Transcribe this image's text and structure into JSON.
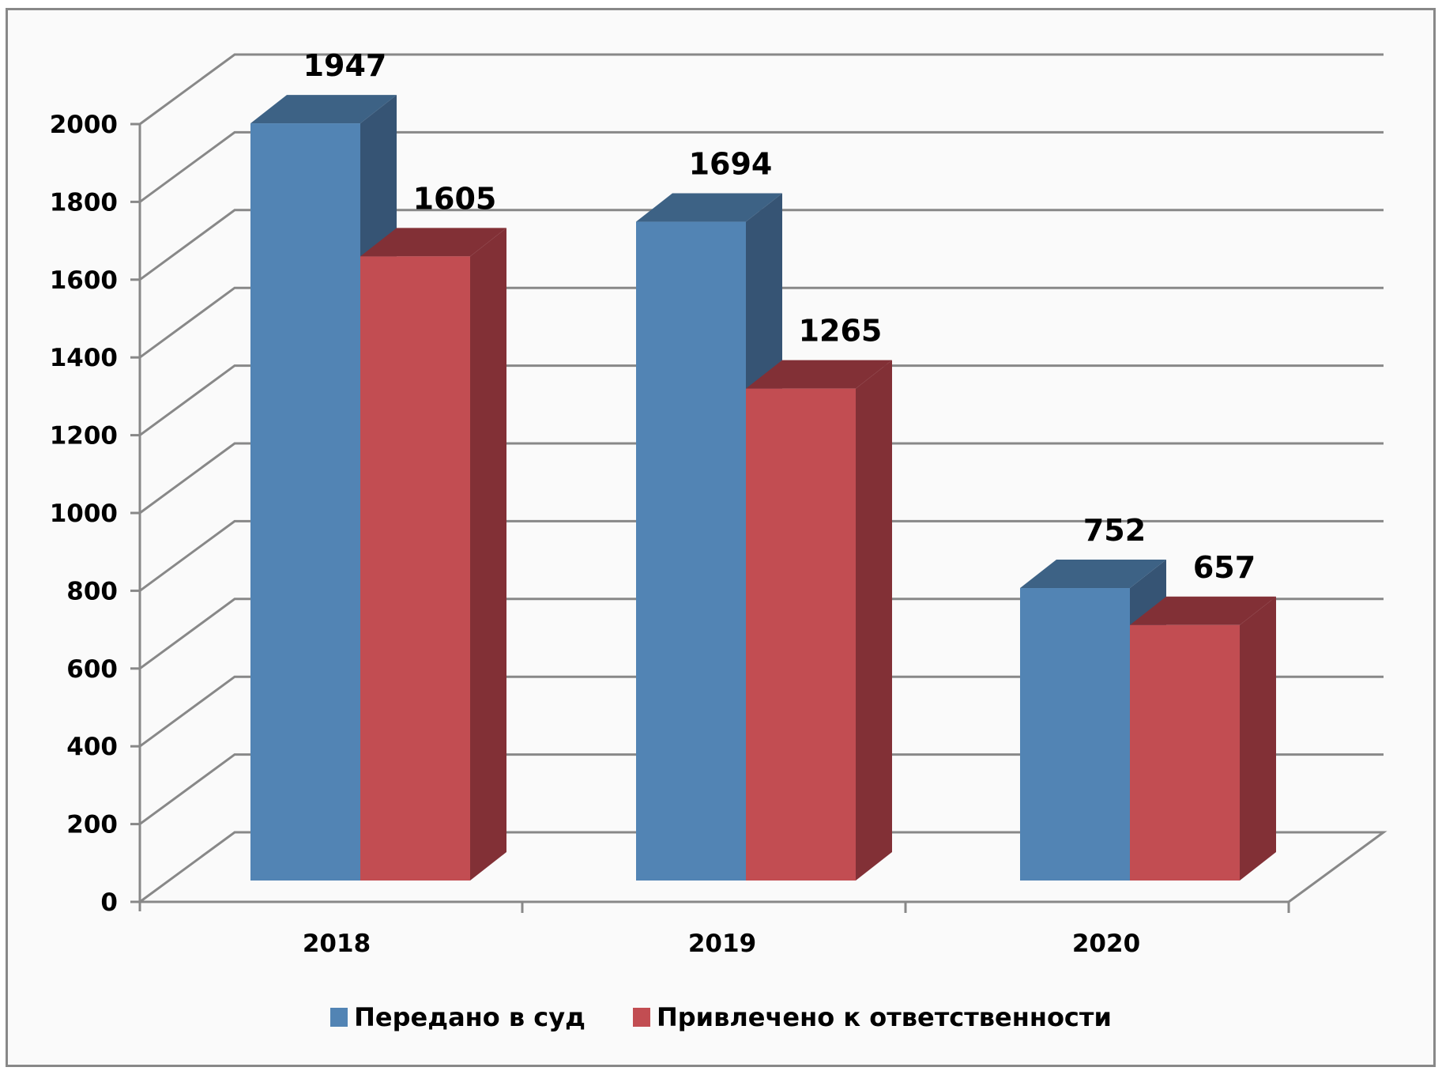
{
  "chart_data": {
    "type": "bar",
    "subtype": "3d-clustered-column",
    "title": "",
    "xlabel": "",
    "ylabel": "",
    "categories": [
      "2018",
      "2019",
      "2020"
    ],
    "series": [
      {
        "name": "Передано в суд",
        "values": [
          1947,
          1694,
          752
        ],
        "color": "#5284B4"
      },
      {
        "name": "Привлечено к ответственности",
        "values": [
          1605,
          1265,
          657
        ],
        "color": "#C24D52"
      }
    ],
    "yticks": [
      0,
      200,
      400,
      600,
      800,
      1000,
      1200,
      1400,
      1600,
      1800,
      2000
    ],
    "ylim": [
      0,
      2000
    ],
    "grid": true,
    "legend_position": "bottom",
    "data_labels": true
  },
  "legend": {
    "items": [
      {
        "label": "Передано в суд",
        "color": "#5284B4"
      },
      {
        "label": "Привлечено к ответственности",
        "color": "#C24D52"
      }
    ]
  },
  "colors": {
    "blue_front": "#5284B4",
    "blue_top": "#3D6285",
    "blue_side": "#365474",
    "red_front": "#C24D52",
    "red_top": "#823036",
    "red_side": "#823036",
    "grid": "#888888"
  }
}
